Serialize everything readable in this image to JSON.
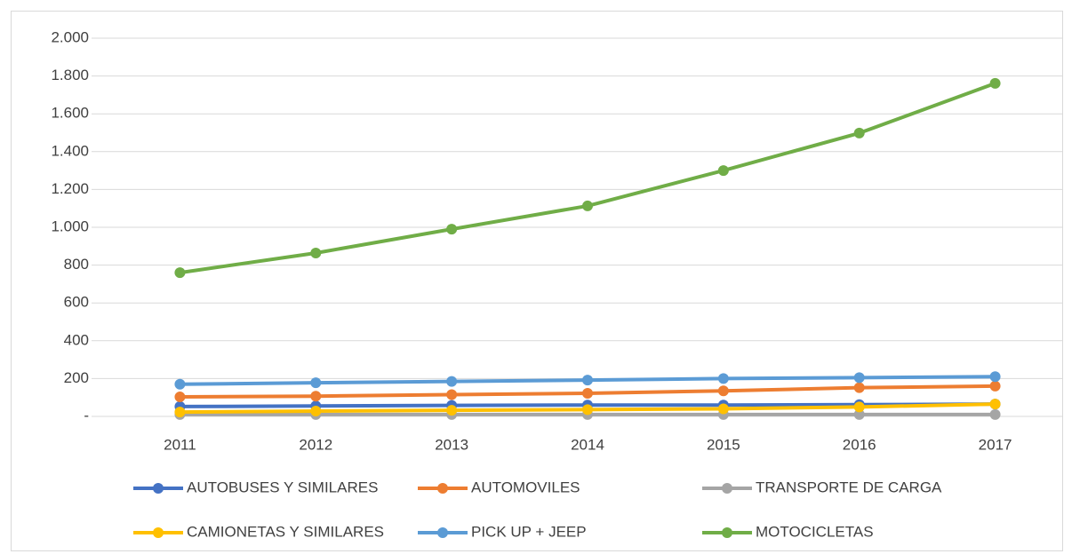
{
  "chart_data": {
    "type": "line",
    "categories": [
      "2011",
      "2012",
      "2013",
      "2014",
      "2015",
      "2016",
      "2017"
    ],
    "series": [
      {
        "name": "AUTOBUSES Y SIMILARES",
        "color": "#4472c4",
        "values": [
          52,
          55,
          58,
          60,
          60,
          62,
          65
        ]
      },
      {
        "name": "AUTOMOVILES",
        "color": "#ed7d31",
        "values": [
          103,
          107,
          115,
          122,
          135,
          152,
          160
        ]
      },
      {
        "name": "TRANSPORTE DE CARGA",
        "color": "#a5a5a5",
        "values": [
          10,
          10,
          10,
          10,
          10,
          10,
          10
        ]
      },
      {
        "name": "CAMIONETAS Y SIMILARES",
        "color": "#ffc000",
        "values": [
          23,
          28,
          32,
          36,
          40,
          50,
          65
        ]
      },
      {
        "name": "PICK UP + JEEP",
        "color": "#5b9bd5",
        "values": [
          170,
          178,
          185,
          192,
          200,
          205,
          210
        ]
      },
      {
        "name": "MOTOCICLETAS",
        "color": "#70ad47",
        "values": [
          760,
          864,
          990,
          1113,
          1300,
          1498,
          1761
        ]
      }
    ],
    "ylim": [
      0,
      2000
    ],
    "yticks": [
      {
        "value": 0,
        "label": "-"
      },
      200,
      400,
      600,
      800,
      {
        "value": 1000,
        "label": "1.000"
      },
      {
        "value": 1200,
        "label": "1.200"
      },
      {
        "value": 1400,
        "label": "1.400"
      },
      {
        "value": 1600,
        "label": "1.600"
      },
      {
        "value": 1800,
        "label": "1.800"
      },
      {
        "value": 2000,
        "label": "2.000"
      }
    ],
    "grid": true
  }
}
